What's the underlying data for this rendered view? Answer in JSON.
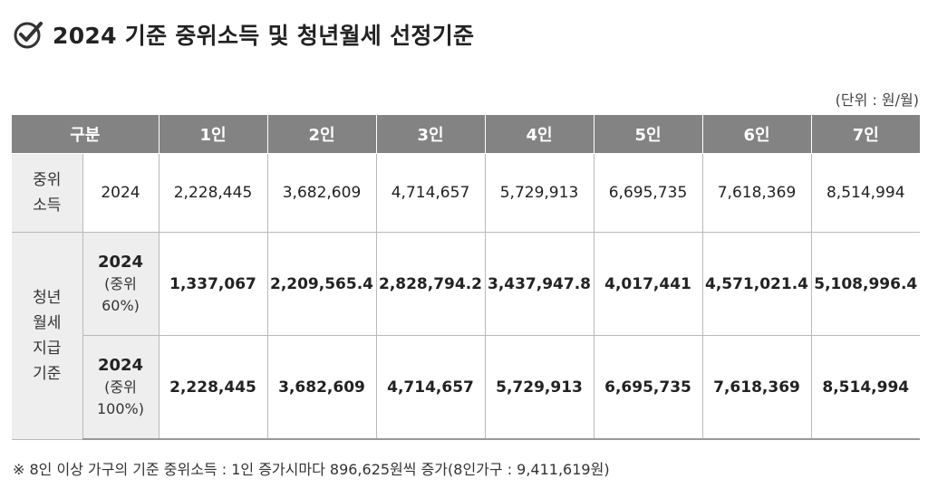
{
  "title": "2024 기준 중위소득 및 청년월세 선정기준",
  "title_icon": "check-circle-icon",
  "unit": "(단위 : 원/월)",
  "table": {
    "header": {
      "category": "구분",
      "columns": [
        "1인",
        "2인",
        "3인",
        "4인",
        "5인",
        "6인",
        "7인"
      ]
    },
    "median_income": {
      "label_line1": "중위",
      "label_line2": "소득",
      "year": "2024",
      "values": [
        "2,228,445",
        "3,682,609",
        "4,714,657",
        "5,729,913",
        "6,695,735",
        "7,618,369",
        "8,514,994"
      ]
    },
    "youth_rent": {
      "label_line1": "청년",
      "label_line2": "월세",
      "label_line3": "지급",
      "label_line4": "기준",
      "rows": [
        {
          "year": "2024",
          "pct_line1": "(중위",
          "pct_line2": "60%)",
          "values": [
            "1,337,067",
            "2,209,565.4",
            "2,828,794.2",
            "3,437,947.8",
            "4,017,441",
            "4,571,021.4",
            "5,108,996.4"
          ]
        },
        {
          "year": "2024",
          "pct_line1": "(중위",
          "pct_line2": "100%)",
          "values": [
            "2,228,445",
            "3,682,609",
            "4,714,657",
            "5,729,913",
            "6,695,735",
            "7,618,369",
            "8,514,994"
          ]
        }
      ]
    }
  },
  "footnote": "※ 8인 이상 가구의 기준 중위소득 : 1인 증가시마다 896,625원씩 증가(8인가구 : 9,411,619원)",
  "colors": {
    "header_bg": "#838383",
    "label_bg": "#eeeeee",
    "border": "#b9b9b9"
  }
}
